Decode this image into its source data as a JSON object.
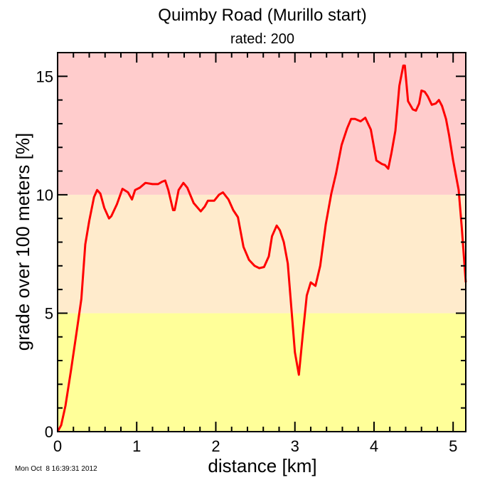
{
  "chart_data": {
    "type": "line",
    "title": "Quimby Road (Murillo start)",
    "subtitle": "rated: 200",
    "xlabel": "distance [km]",
    "ylabel": "grade over 100 meters [%]",
    "xlim": [
      0,
      5.16
    ],
    "ylim": [
      0,
      16
    ],
    "xticks": [
      0,
      1,
      2,
      3,
      4,
      5
    ],
    "yticks": [
      0,
      5,
      10,
      15
    ],
    "x_minor_step": 0.2,
    "y_minor_step": 1,
    "grid": false,
    "bands": [
      {
        "from": 0,
        "to": 5,
        "color": "#ffff99"
      },
      {
        "from": 5,
        "to": 10,
        "color": "#ffebcc"
      },
      {
        "from": 10,
        "to": 16,
        "color": "#ffcccc"
      }
    ],
    "line_color": "#ff0000",
    "points": [
      [
        0,
        0
      ],
      [
        0.045,
        0.27
      ],
      [
        0.1,
        1.1
      ],
      [
        0.17,
        2.6
      ],
      [
        0.24,
        4.2
      ],
      [
        0.3,
        5.6
      ],
      [
        0.35,
        7.9
      ],
      [
        0.4,
        8.9
      ],
      [
        0.46,
        9.9
      ],
      [
        0.5,
        10.2
      ],
      [
        0.54,
        10.05
      ],
      [
        0.59,
        9.45
      ],
      [
        0.65,
        9.0
      ],
      [
        0.68,
        9.1
      ],
      [
        0.75,
        9.6
      ],
      [
        0.82,
        10.25
      ],
      [
        0.89,
        10.1
      ],
      [
        0.94,
        9.8
      ],
      [
        0.98,
        10.2
      ],
      [
        1.04,
        10.3
      ],
      [
        1.11,
        10.5
      ],
      [
        1.2,
        10.45
      ],
      [
        1.27,
        10.45
      ],
      [
        1.32,
        10.55
      ],
      [
        1.36,
        10.6
      ],
      [
        1.4,
        10.2
      ],
      [
        1.46,
        9.35
      ],
      [
        1.48,
        9.35
      ],
      [
        1.53,
        10.2
      ],
      [
        1.59,
        10.5
      ],
      [
        1.64,
        10.3
      ],
      [
        1.72,
        9.65
      ],
      [
        1.81,
        9.3
      ],
      [
        1.86,
        9.5
      ],
      [
        1.9,
        9.75
      ],
      [
        1.98,
        9.75
      ],
      [
        2.04,
        10.0
      ],
      [
        2.09,
        10.1
      ],
      [
        2.16,
        9.8
      ],
      [
        2.22,
        9.35
      ],
      [
        2.28,
        9.05
      ],
      [
        2.35,
        7.8
      ],
      [
        2.42,
        7.25
      ],
      [
        2.49,
        7.0
      ],
      [
        2.55,
        6.9
      ],
      [
        2.61,
        6.95
      ],
      [
        2.67,
        7.4
      ],
      [
        2.71,
        8.25
      ],
      [
        2.77,
        8.7
      ],
      [
        2.81,
        8.5
      ],
      [
        2.86,
        8.0
      ],
      [
        2.91,
        7.1
      ],
      [
        2.96,
        5.0
      ],
      [
        3.0,
        3.35
      ],
      [
        3.05,
        2.4
      ],
      [
        3.1,
        4.1
      ],
      [
        3.15,
        5.75
      ],
      [
        3.2,
        6.3
      ],
      [
        3.26,
        6.15
      ],
      [
        3.32,
        7.0
      ],
      [
        3.39,
        8.75
      ],
      [
        3.46,
        10.05
      ],
      [
        3.52,
        10.9
      ],
      [
        3.59,
        12.1
      ],
      [
        3.66,
        12.8
      ],
      [
        3.71,
        13.2
      ],
      [
        3.76,
        13.2
      ],
      [
        3.83,
        13.1
      ],
      [
        3.89,
        13.25
      ],
      [
        3.96,
        12.75
      ],
      [
        4.03,
        11.45
      ],
      [
        4.1,
        11.3
      ],
      [
        4.14,
        11.25
      ],
      [
        4.18,
        11.1
      ],
      [
        4.22,
        11.75
      ],
      [
        4.27,
        12.7
      ],
      [
        4.32,
        14.6
      ],
      [
        4.37,
        15.45
      ],
      [
        4.39,
        15.45
      ],
      [
        4.43,
        13.95
      ],
      [
        4.49,
        13.6
      ],
      [
        4.53,
        13.55
      ],
      [
        4.57,
        13.85
      ],
      [
        4.6,
        14.4
      ],
      [
        4.64,
        14.35
      ],
      [
        4.68,
        14.15
      ],
      [
        4.73,
        13.8
      ],
      [
        4.78,
        13.85
      ],
      [
        4.82,
        14.0
      ],
      [
        4.86,
        13.75
      ],
      [
        4.91,
        13.2
      ],
      [
        4.95,
        12.5
      ],
      [
        5.0,
        11.45
      ],
      [
        5.07,
        10.2
      ],
      [
        5.11,
        8.6
      ],
      [
        5.16,
        6.3
      ]
    ]
  },
  "footer": {
    "timestamp": "Mon Oct  8 16:39:31 2012"
  }
}
